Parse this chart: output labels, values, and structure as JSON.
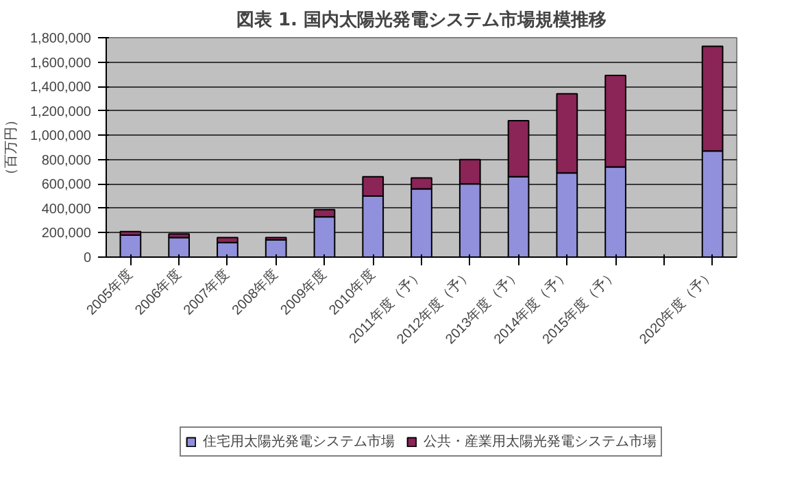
{
  "chart_data": {
    "type": "bar",
    "stacked": true,
    "title": "図表 1. 国内太陽光発電システム市場規模推移",
    "ylabel": "（百万円）",
    "categories": [
      "2005年度",
      "2006年度",
      "2007年度",
      "2008年度",
      "2009年度",
      "2010年度",
      "2011年度（予）",
      "2012年度（予）",
      "2013年度（予）",
      "2014年度（予）",
      "2015年度（予）",
      null,
      "2020年度（予）"
    ],
    "series": [
      {
        "name": "住宅用太陽光発電システム市場",
        "color": "#9090dc",
        "values": [
          180000,
          160000,
          120000,
          140000,
          330000,
          500000,
          560000,
          600000,
          660000,
          690000,
          740000,
          null,
          870000
        ]
      },
      {
        "name": "公共・産業用太陽光発電システム市場",
        "color": "#8b2457",
        "values": [
          30000,
          30000,
          40000,
          20000,
          60000,
          160000,
          90000,
          200000,
          460000,
          650000,
          750000,
          null,
          860000
        ]
      }
    ],
    "ylim": [
      0,
      1800000
    ],
    "yticks": [
      {
        "value": 0,
        "label": "0"
      },
      {
        "value": 200000,
        "label": "200,000"
      },
      {
        "value": 400000,
        "label": "400,000"
      },
      {
        "value": 600000,
        "label": "600,000"
      },
      {
        "value": 800000,
        "label": "800,000"
      },
      {
        "value": 1000000,
        "label": "1,000,000"
      },
      {
        "value": 1200000,
        "label": "1,200,000"
      },
      {
        "value": 1400000,
        "label": "1,400,000"
      },
      {
        "value": 1600000,
        "label": "1,600,000"
      },
      {
        "value": 1800000,
        "label": "1,800,000"
      }
    ],
    "grid": "y",
    "legend": "bottom"
  }
}
